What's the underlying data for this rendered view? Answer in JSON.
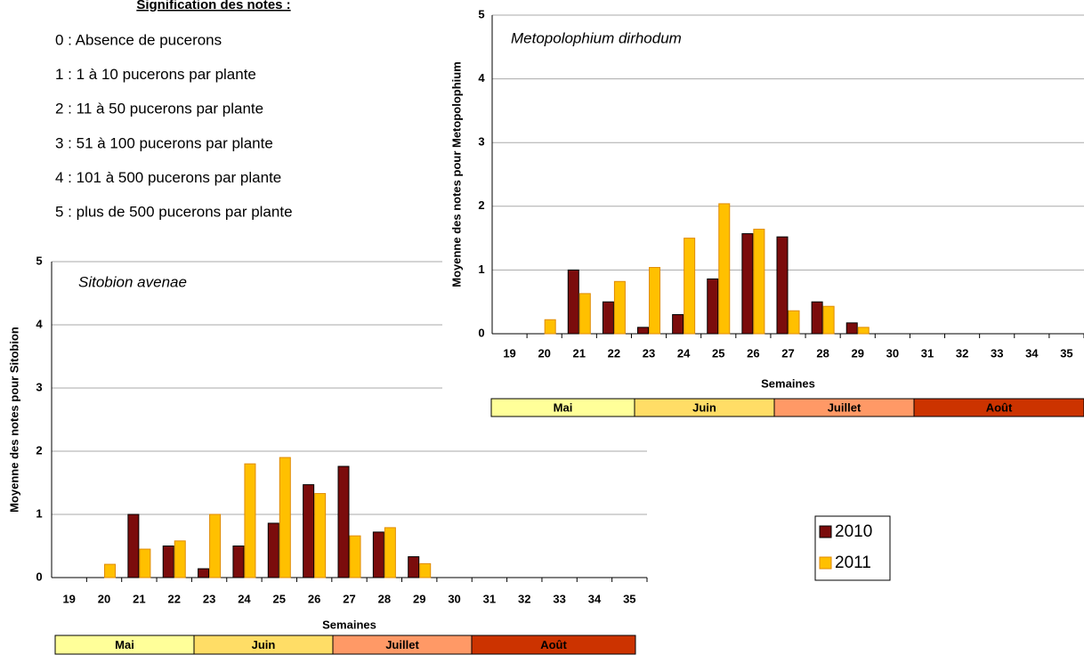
{
  "notes": {
    "title": "Signification des notes :",
    "items": [
      "0 : Absence de pucerons",
      "1 : 1 à 10 pucerons par plante",
      "2 : 11 à 50 pucerons par plante",
      "3 : 51 à 100 pucerons par plante",
      "4 : 101 à 500 pucerons par plante",
      "5 : plus de 500 pucerons par plante"
    ]
  },
  "chart_data": [
    {
      "type": "bar",
      "annotation": "Metopolophium dirhodum",
      "ylabel": "Moyenne des notes pour Metopolophium",
      "xlabel": "Semaines",
      "categories": [
        "19",
        "20",
        "21",
        "22",
        "23",
        "24",
        "25",
        "26",
        "27",
        "28",
        "29",
        "30",
        "31",
        "32",
        "33",
        "34",
        "35"
      ],
      "series": [
        {
          "name": "2010",
          "color": "#7b0c0c",
          "values": [
            0,
            0,
            1.0,
            0.5,
            0.1,
            0.3,
            0.86,
            1.57,
            1.52,
            0.5,
            0.17,
            0,
            0,
            0,
            0,
            0,
            0
          ]
        },
        {
          "name": "2011",
          "color": "#ffc000",
          "values": [
            0,
            0.22,
            0.63,
            0.82,
            1.04,
            1.5,
            2.04,
            1.64,
            0.36,
            0.43,
            0.1,
            0,
            0,
            0,
            0,
            0,
            0
          ]
        }
      ],
      "ylim": [
        0,
        5
      ],
      "yticks": [
        0,
        1,
        2,
        3,
        4,
        5
      ],
      "grid": true,
      "months": [
        "Mai",
        "Juin",
        "Juillet",
        "Août"
      ]
    },
    {
      "type": "bar",
      "annotation": "Sitobion avenae",
      "ylabel": "Moyenne des notes pour Sitobion",
      "xlabel": "Semaines",
      "categories": [
        "19",
        "20",
        "21",
        "22",
        "23",
        "24",
        "25",
        "26",
        "27",
        "28",
        "29",
        "30",
        "31",
        "32",
        "33",
        "34",
        "35"
      ],
      "series": [
        {
          "name": "2010",
          "color": "#7b0c0c",
          "values": [
            0,
            0,
            1.0,
            0.5,
            0.14,
            0.5,
            0.86,
            1.47,
            1.76,
            0.72,
            0.33,
            0,
            0,
            0,
            0,
            0,
            0
          ]
        },
        {
          "name": "2011",
          "color": "#ffc000",
          "values": [
            0,
            0.21,
            0.45,
            0.58,
            1.0,
            1.8,
            1.9,
            1.33,
            0.66,
            0.79,
            0.22,
            0,
            0,
            0,
            0,
            0,
            0
          ]
        }
      ],
      "ylim": [
        0,
        5
      ],
      "yticks": [
        0,
        1,
        2,
        3,
        4,
        5
      ],
      "grid": true,
      "months": [
        "Mai",
        "Juin",
        "Juillet",
        "Août"
      ]
    }
  ]
}
